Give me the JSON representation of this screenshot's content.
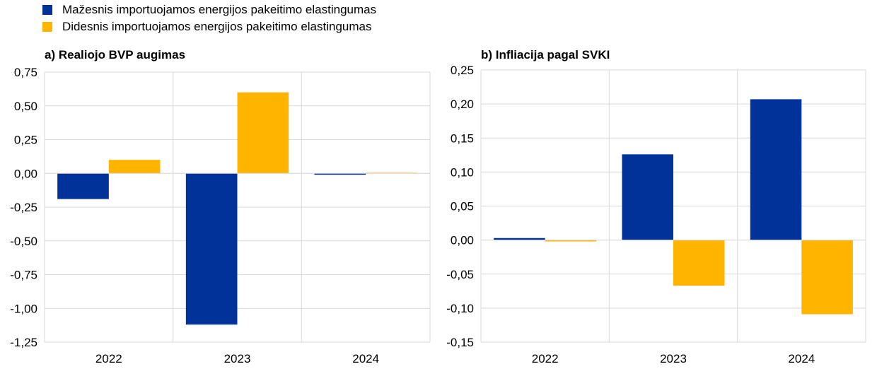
{
  "legend": [
    {
      "label": "Mažesnis importuojamos energijos pakeitimo elastingumas",
      "color": "#003299"
    },
    {
      "label": "Didesnis importuojamos energijos pakeitimo elastingumas",
      "color": "#FFB400"
    }
  ],
  "chart_data": [
    {
      "type": "bar",
      "title": "a) Realiojo BVP augimas",
      "categories": [
        "2022",
        "2023",
        "2024"
      ],
      "series": [
        {
          "name": "Mažesnis importuojamos energijos pakeitimo elastingumas",
          "color": "#003299",
          "values": [
            -0.19,
            -1.12,
            -0.01
          ]
        },
        {
          "name": "Didesnis importuojamos energijos pakeitimo elastingumas",
          "color": "#FFB400",
          "values": [
            0.1,
            0.6,
            0.005
          ]
        }
      ],
      "ylim": [
        -1.25,
        0.75
      ],
      "yticks": [
        0.75,
        0.5,
        0.25,
        0.0,
        -0.25,
        -0.5,
        -0.75,
        -1.0,
        -1.25
      ],
      "ytick_labels": [
        "0,75",
        "0,50",
        "0,25",
        "0,00",
        "-0,25",
        "-0,50",
        "-0,75",
        "-1,00",
        "-1,25"
      ],
      "grid": true
    },
    {
      "type": "bar",
      "title": "b) Infliacija pagal SVKI",
      "categories": [
        "2022",
        "2023",
        "2024"
      ],
      "series": [
        {
          "name": "Mažesnis importuojamos energijos pakeitimo elastingumas",
          "color": "#003299",
          "values": [
            0.003,
            0.126,
            0.207
          ]
        },
        {
          "name": "Didesnis importuojamos energijos pakeitimo elastingumas",
          "color": "#FFB400",
          "values": [
            -0.002,
            -0.067,
            -0.109
          ]
        }
      ],
      "ylim": [
        -0.15,
        0.25
      ],
      "yticks": [
        0.25,
        0.2,
        0.15,
        0.1,
        0.05,
        0.0,
        -0.05,
        -0.1,
        -0.15
      ],
      "ytick_labels": [
        "0,25",
        "0,20",
        "0,15",
        "0,10",
        "0,05",
        "0,00",
        "-0,05",
        "-0,10",
        "-0,15"
      ],
      "grid": true
    }
  ]
}
